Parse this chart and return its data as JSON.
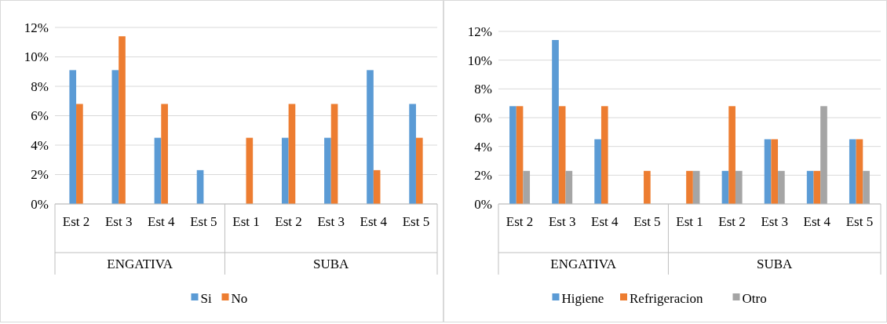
{
  "chart_data": [
    {
      "type": "bar",
      "categories": [
        "Est 2",
        "Est 3",
        "Est 4",
        "Est 5",
        "Est 1",
        "Est 2",
        "Est 3",
        "Est 4",
        "Est 5"
      ],
      "series": [
        {
          "name": "Si",
          "color": "#5b9bd5",
          "values": [
            9.1,
            9.1,
            4.5,
            2.3,
            0,
            4.5,
            4.5,
            9.1,
            6.8
          ]
        },
        {
          "name": "No",
          "color": "#ed7d31",
          "values": [
            6.8,
            11.4,
            6.8,
            0,
            4.5,
            6.8,
            6.8,
            2.3,
            4.5
          ]
        }
      ],
      "annotations": [
        "ENGATIVA",
        "SUBA"
      ],
      "ylim": [
        0,
        12
      ],
      "yticks": [
        {
          "value": 0,
          "label": "0%"
        },
        {
          "value": 2,
          "label": "2%"
        },
        {
          "value": 4,
          "label": "4%"
        },
        {
          "value": 6,
          "label": "6%"
        },
        {
          "value": 8,
          "label": "8%"
        },
        {
          "value": 10,
          "label": "10%"
        },
        {
          "value": 12,
          "label": "12%"
        }
      ],
      "grid": "y",
      "legend": "bottom"
    },
    {
      "type": "bar",
      "categories": [
        "Est 2",
        "Est 3",
        "Est 4",
        "Est 5",
        "Est 1",
        "Est 2",
        "Est 3",
        "Est 4",
        "Est 5"
      ],
      "series": [
        {
          "name": "Higiene",
          "color": "#5b9bd5",
          "values": [
            6.8,
            11.4,
            4.5,
            0,
            0,
            2.3,
            4.5,
            2.3,
            4.5
          ]
        },
        {
          "name": "Refrigeracion",
          "color": "#ed7d31",
          "values": [
            6.8,
            6.8,
            6.8,
            2.3,
            2.3,
            6.8,
            4.5,
            2.3,
            4.5
          ]
        },
        {
          "name": "Otro",
          "color": "#a5a5a5",
          "values": [
            2.3,
            2.3,
            0,
            0,
            2.3,
            2.3,
            2.3,
            6.8,
            2.3
          ]
        }
      ],
      "annotations": [
        "ENGATIVA",
        "SUBA"
      ],
      "ylim": [
        0,
        12
      ],
      "yticks": [
        {
          "value": 0,
          "label": "0%"
        },
        {
          "value": 2,
          "label": "2%"
        },
        {
          "value": 4,
          "label": "4%"
        },
        {
          "value": 6,
          "label": "6%"
        },
        {
          "value": 8,
          "label": "8%"
        },
        {
          "value": 10,
          "label": "10%"
        },
        {
          "value": 12,
          "label": "12%"
        }
      ],
      "grid": "y",
      "legend": "bottom"
    }
  ]
}
